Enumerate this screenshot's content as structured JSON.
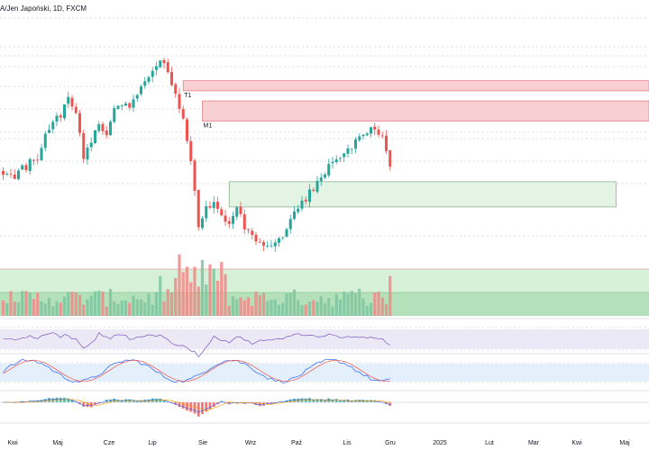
{
  "header": {
    "title": "A/Jen Japoński, 1D, FXCM"
  },
  "colors": {
    "up": "#26a69a",
    "down": "#ef5350",
    "supply_fill": "#f8d0d4",
    "supply_stroke": "#e57373",
    "demand_fill": "#e3f4e5",
    "demand_stroke": "#81a784",
    "vol_zone_top": "#d7f0d8",
    "vol_zone_bottom": "#b4e1b9",
    "rsi_band": "#ece9f6",
    "stoch_band": "#e3f0fb",
    "grid": "#9aa0a6"
  },
  "chart_data": [
    {
      "type": "candlestick",
      "title": "A/Jen Japoński, 1D, FXCM",
      "x_axis": {
        "tick_labels": [
          "Kwi",
          "Maj",
          "Cze",
          "Lip",
          "Sie",
          "Wrz",
          "Paź",
          "Lis",
          "Gru",
          "2025",
          "Lut",
          "Mar",
          "Kwi",
          "Maj"
        ]
      },
      "price_path": [
        [
          0,
          0.36
        ],
        [
          3,
          0.34
        ],
        [
          6,
          0.39
        ],
        [
          9,
          0.45
        ],
        [
          12,
          0.62
        ],
        [
          15,
          0.7
        ],
        [
          17,
          0.78
        ],
        [
          19,
          0.72
        ],
        [
          21,
          0.46
        ],
        [
          23,
          0.55
        ],
        [
          25,
          0.62
        ],
        [
          27,
          0.6
        ],
        [
          29,
          0.73
        ],
        [
          31,
          0.76
        ],
        [
          33,
          0.74
        ],
        [
          35,
          0.82
        ],
        [
          37,
          0.9
        ],
        [
          39,
          0.97
        ],
        [
          41,
          1.0
        ],
        [
          43,
          0.96
        ],
        [
          45,
          0.81
        ],
        [
          47,
          0.67
        ],
        [
          49,
          0.42
        ],
        [
          51,
          0.05
        ],
        [
          53,
          0.14
        ],
        [
          55,
          0.2
        ],
        [
          57,
          0.12
        ],
        [
          59,
          0.03
        ],
        [
          61,
          0.13
        ],
        [
          63,
          0.04
        ],
        [
          65,
          -0.02
        ],
        [
          67,
          -0.06
        ],
        [
          69,
          -0.09
        ],
        [
          71,
          -0.06
        ],
        [
          73,
          -0.02
        ],
        [
          75,
          0.09
        ],
        [
          77,
          0.14
        ],
        [
          79,
          0.2
        ],
        [
          81,
          0.26
        ],
        [
          83,
          0.32
        ],
        [
          85,
          0.4
        ],
        [
          87,
          0.45
        ],
        [
          89,
          0.48
        ],
        [
          91,
          0.52
        ],
        [
          93,
          0.55
        ],
        [
          95,
          0.6
        ],
        [
          97,
          0.63
        ],
        [
          99,
          0.57
        ],
        [
          101,
          0.4
        ]
      ],
      "zones": [
        {
          "kind": "supply",
          "label": "T1",
          "from_bar": 47,
          "price_top": 0.9,
          "price_bottom": 0.84
        },
        {
          "kind": "supply",
          "label": "M1",
          "from_bar": 52,
          "price_top": 0.78,
          "price_bottom": 0.66
        },
        {
          "kind": "demand",
          "label": "",
          "from_bar": 59,
          "to_bar": 160,
          "price_top": 0.3,
          "price_bottom": 0.15
        }
      ]
    },
    {
      "type": "bar",
      "name": "volume",
      "note": "volume histogram with green zone"
    },
    {
      "type": "line",
      "name": "rsi"
    },
    {
      "type": "line",
      "name": "stochastic"
    },
    {
      "type": "bar",
      "name": "macd"
    }
  ]
}
